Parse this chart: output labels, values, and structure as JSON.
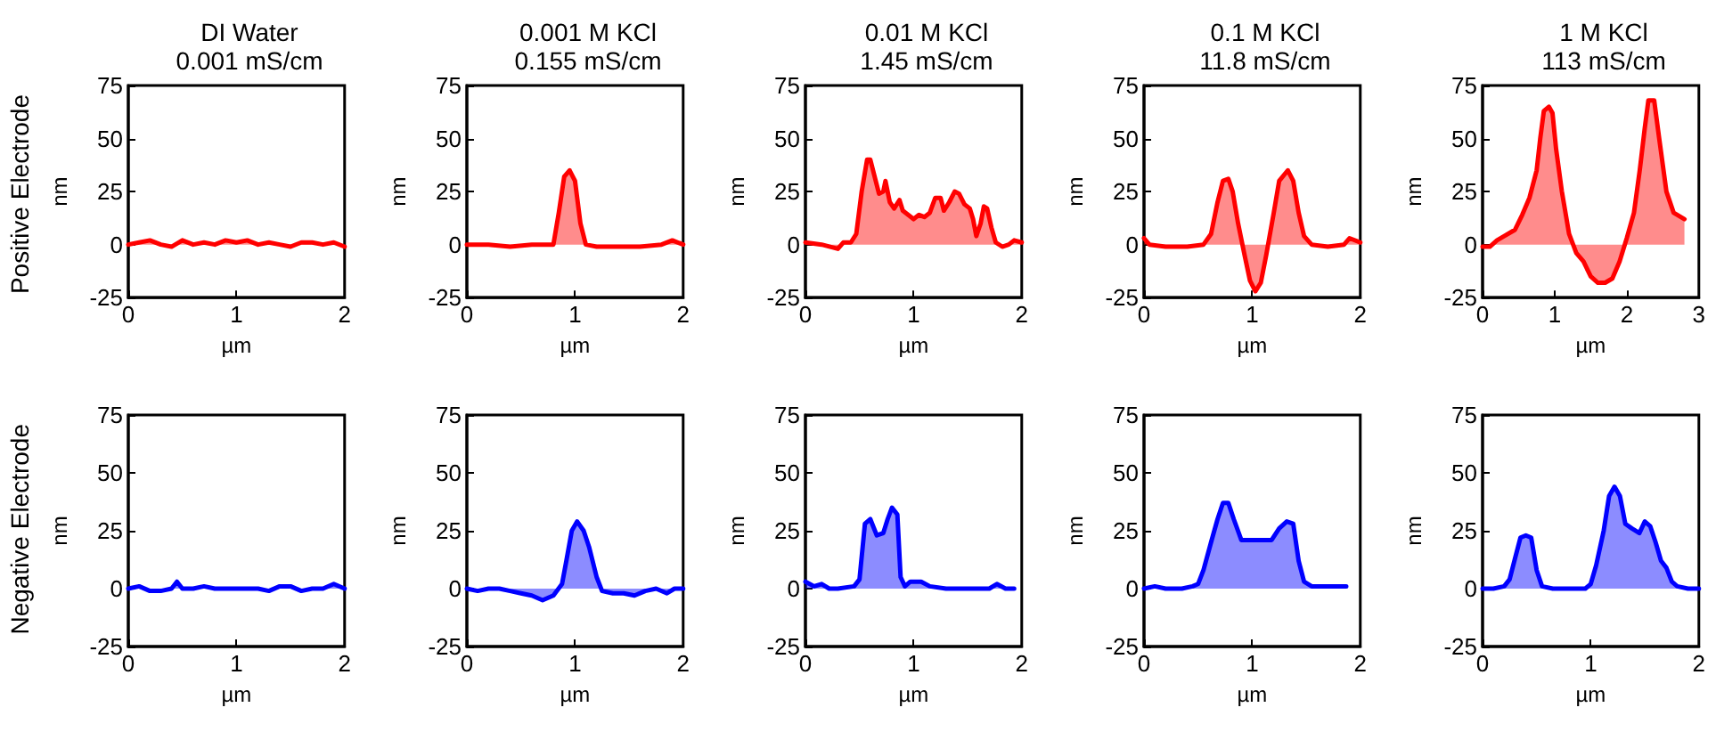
{
  "chart_data": [
    {
      "type": "area",
      "title": "DI Water",
      "subtitle": "0.001 mS/cm",
      "xlabel": "µm",
      "ylabel": "nm",
      "annotations": [
        "Positive Electrode"
      ],
      "marker": "none",
      "color": "#ff0000",
      "xlim": [
        0,
        2
      ],
      "xticks": [
        0,
        1,
        2
      ],
      "ylim": [
        -25,
        75
      ],
      "yticks": [
        -25,
        0,
        25,
        50,
        75
      ],
      "x": [
        0,
        0.1,
        0.2,
        0.3,
        0.4,
        0.5,
        0.6,
        0.7,
        0.8,
        0.9,
        1.0,
        1.1,
        1.2,
        1.3,
        1.4,
        1.5,
        1.6,
        1.7,
        1.8,
        1.9,
        2
      ],
      "values": [
        0,
        1,
        2,
        0,
        -1,
        2,
        0,
        1,
        0,
        2,
        1,
        2,
        0,
        1,
        0,
        -1,
        1,
        1,
        0,
        1,
        -1
      ]
    },
    {
      "type": "area",
      "title": "0.001 M KCl",
      "subtitle": "0.155 mS/cm",
      "xlabel": "µm",
      "ylabel": "nm",
      "marker": "none",
      "color": "#ff0000",
      "xlim": [
        0,
        2
      ],
      "xticks": [
        0,
        1,
        2
      ],
      "ylim": [
        -25,
        75
      ],
      "yticks": [
        -25,
        0,
        25,
        50,
        75
      ],
      "x": [
        0,
        0.2,
        0.4,
        0.6,
        0.8,
        0.85,
        0.9,
        0.95,
        1.0,
        1.05,
        1.1,
        1.2,
        1.4,
        1.6,
        1.8,
        1.9,
        2
      ],
      "values": [
        0,
        0,
        -1,
        0,
        0,
        15,
        32,
        35,
        30,
        10,
        0,
        -1,
        -1,
        -1,
        0,
        2,
        0
      ]
    },
    {
      "type": "area",
      "title": "0.01 M KCl",
      "subtitle": "1.45 mS/cm",
      "xlabel": "µm",
      "ylabel": "nm",
      "marker": "none",
      "color": "#ff0000",
      "xlim": [
        0,
        2
      ],
      "xticks": [
        0,
        1,
        2
      ],
      "ylim": [
        -25,
        75
      ],
      "yticks": [
        -25,
        0,
        25,
        50,
        75
      ],
      "x": [
        0,
        0.15,
        0.3,
        0.35,
        0.42,
        0.47,
        0.52,
        0.57,
        0.6,
        0.65,
        0.68,
        0.72,
        0.74,
        0.78,
        0.82,
        0.87,
        0.9,
        0.95,
        1.0,
        1.05,
        1.1,
        1.15,
        1.2,
        1.25,
        1.28,
        1.33,
        1.38,
        1.42,
        1.47,
        1.52,
        1.55,
        1.58,
        1.62,
        1.65,
        1.68,
        1.72,
        1.76,
        1.82,
        1.88,
        1.93,
        2
      ],
      "values": [
        1,
        0,
        -2,
        1,
        1,
        5,
        25,
        40,
        40,
        30,
        24,
        25,
        30,
        20,
        17,
        21,
        16,
        14,
        12,
        14,
        13,
        15,
        22,
        22,
        16,
        20,
        25,
        24,
        19,
        17,
        12,
        4,
        10,
        18,
        17,
        8,
        1,
        -1,
        0,
        2,
        1
      ]
    },
    {
      "type": "area",
      "title": "0.1 M KCl",
      "subtitle": "11.8 mS/cm",
      "xlabel": "µm",
      "ylabel": "nm",
      "marker": "none",
      "color": "#ff0000",
      "xlim": [
        0,
        2
      ],
      "xticks": [
        0,
        1,
        2
      ],
      "ylim": [
        -25,
        75
      ],
      "yticks": [
        -25,
        0,
        25,
        50,
        75
      ],
      "x": [
        0,
        0.05,
        0.2,
        0.4,
        0.55,
        0.62,
        0.68,
        0.73,
        0.78,
        0.82,
        0.87,
        0.93,
        0.98,
        1.03,
        1.08,
        1.13,
        1.2,
        1.25,
        1.33,
        1.38,
        1.43,
        1.48,
        1.55,
        1.7,
        1.85,
        1.9,
        2
      ],
      "values": [
        3,
        0,
        -1,
        -1,
        0,
        5,
        20,
        30,
        31,
        25,
        10,
        -5,
        -17,
        -22,
        -18,
        -5,
        15,
        30,
        35,
        30,
        15,
        4,
        0,
        -1,
        0,
        3,
        1
      ]
    },
    {
      "type": "area",
      "title": "1 M KCl",
      "subtitle": "113 mS/cm",
      "xlabel": "µm",
      "ylabel": "nm",
      "marker": "none",
      "color": "#ff0000",
      "xlim": [
        0,
        3
      ],
      "xticks": [
        0,
        1,
        2,
        3
      ],
      "ylim": [
        -25,
        75
      ],
      "yticks": [
        -25,
        0,
        25,
        50,
        75
      ],
      "x": [
        0,
        0.1,
        0.2,
        0.3,
        0.45,
        0.55,
        0.65,
        0.75,
        0.8,
        0.85,
        0.92,
        0.97,
        1.02,
        1.1,
        1.2,
        1.3,
        1.4,
        1.5,
        1.6,
        1.7,
        1.8,
        1.9,
        2.0,
        2.1,
        2.18,
        2.25,
        2.3,
        2.38,
        2.45,
        2.55,
        2.65,
        2.8
      ],
      "values": [
        -1,
        -1,
        2,
        4,
        7,
        14,
        22,
        35,
        50,
        63,
        65,
        62,
        45,
        25,
        5,
        -4,
        -8,
        -15,
        -18,
        -18,
        -16,
        -8,
        3,
        15,
        35,
        55,
        68,
        68,
        50,
        25,
        15,
        12
      ]
    },
    {
      "type": "area",
      "xlabel": "µm",
      "ylabel": "nm",
      "annotations": [
        "Negative Electrode"
      ],
      "marker": "none",
      "color": "#0000ff",
      "xlim": [
        0,
        2
      ],
      "xticks": [
        0,
        1,
        2
      ],
      "ylim": [
        -25,
        75
      ],
      "yticks": [
        -25,
        0,
        25,
        50,
        75
      ],
      "x": [
        0,
        0.1,
        0.2,
        0.3,
        0.4,
        0.45,
        0.5,
        0.6,
        0.7,
        0.8,
        0.9,
        1.0,
        1.1,
        1.2,
        1.3,
        1.4,
        1.5,
        1.6,
        1.7,
        1.8,
        1.9,
        2
      ],
      "values": [
        0,
        1,
        -1,
        -1,
        0,
        3,
        0,
        0,
        1,
        0,
        0,
        0,
        0,
        0,
        -1,
        1,
        1,
        -1,
        0,
        0,
        2,
        0
      ]
    },
    {
      "type": "area",
      "xlabel": "µm",
      "ylabel": "nm",
      "marker": "none",
      "color": "#0000ff",
      "xlim": [
        0,
        2
      ],
      "xticks": [
        0,
        1,
        2
      ],
      "ylim": [
        -25,
        75
      ],
      "yticks": [
        -25,
        0,
        25,
        50,
        75
      ],
      "x": [
        0,
        0.1,
        0.2,
        0.3,
        0.4,
        0.5,
        0.6,
        0.7,
        0.8,
        0.88,
        0.92,
        0.97,
        1.02,
        1.08,
        1.13,
        1.2,
        1.25,
        1.35,
        1.45,
        1.55,
        1.65,
        1.75,
        1.85,
        1.92,
        2
      ],
      "values": [
        0,
        -1,
        0,
        0,
        -1,
        -2,
        -3,
        -5,
        -3,
        2,
        12,
        25,
        29,
        25,
        18,
        5,
        -1,
        -2,
        -2,
        -3,
        -1,
        0,
        -2,
        0,
        0
      ]
    },
    {
      "type": "area",
      "xlabel": "µm",
      "ylabel": "nm",
      "marker": "none",
      "color": "#0000ff",
      "xlim": [
        0,
        2
      ],
      "xticks": [
        0,
        1,
        2
      ],
      "ylim": [
        -25,
        75
      ],
      "yticks": [
        -25,
        0,
        25,
        50,
        75
      ],
      "x": [
        0,
        0.08,
        0.15,
        0.22,
        0.3,
        0.45,
        0.5,
        0.55,
        0.6,
        0.66,
        0.72,
        0.76,
        0.8,
        0.85,
        0.88,
        0.92,
        0.97,
        1.07,
        1.15,
        1.3,
        1.5,
        1.7,
        1.77,
        1.85,
        1.93
      ],
      "values": [
        3,
        1,
        2,
        0,
        0,
        1,
        4,
        28,
        30,
        23,
        24,
        30,
        35,
        32,
        5,
        1,
        3,
        3,
        1,
        0,
        0,
        0,
        2,
        0,
        0
      ]
    },
    {
      "type": "area",
      "xlabel": "µm",
      "ylabel": "nm",
      "marker": "none",
      "color": "#0000ff",
      "xlim": [
        0,
        2
      ],
      "xticks": [
        0,
        1,
        2
      ],
      "ylim": [
        -25,
        75
      ],
      "yticks": [
        -25,
        0,
        25,
        50,
        75
      ],
      "x": [
        0,
        0.1,
        0.2,
        0.35,
        0.45,
        0.5,
        0.55,
        0.62,
        0.68,
        0.73,
        0.78,
        0.83,
        0.9,
        1.0,
        1.1,
        1.18,
        1.25,
        1.32,
        1.38,
        1.43,
        1.48,
        1.55,
        1.7,
        1.87
      ],
      "values": [
        0,
        1,
        0,
        0,
        1,
        2,
        8,
        20,
        30,
        37,
        37,
        30,
        21,
        21,
        21,
        21,
        26,
        29,
        28,
        12,
        3,
        1,
        1,
        1
      ]
    },
    {
      "type": "area",
      "xlabel": "µm",
      "ylabel": "nm",
      "marker": "none",
      "color": "#0000ff",
      "xlim": [
        0,
        2
      ],
      "xticks": [
        0,
        1,
        2
      ],
      "ylim": [
        -25,
        75
      ],
      "yticks": [
        -25,
        0,
        25,
        50,
        75
      ],
      "x": [
        0,
        0.1,
        0.2,
        0.25,
        0.3,
        0.35,
        0.4,
        0.45,
        0.5,
        0.55,
        0.65,
        0.8,
        0.95,
        1.0,
        1.05,
        1.12,
        1.17,
        1.22,
        1.27,
        1.32,
        1.38,
        1.45,
        1.5,
        1.55,
        1.6,
        1.65,
        1.7,
        1.75,
        1.8,
        1.9,
        2
      ],
      "values": [
        0,
        0,
        1,
        4,
        13,
        22,
        23,
        22,
        8,
        1,
        0,
        0,
        0,
        2,
        10,
        25,
        40,
        44,
        40,
        28,
        26,
        24,
        29,
        27,
        20,
        12,
        9,
        3,
        1,
        0,
        0
      ]
    }
  ]
}
